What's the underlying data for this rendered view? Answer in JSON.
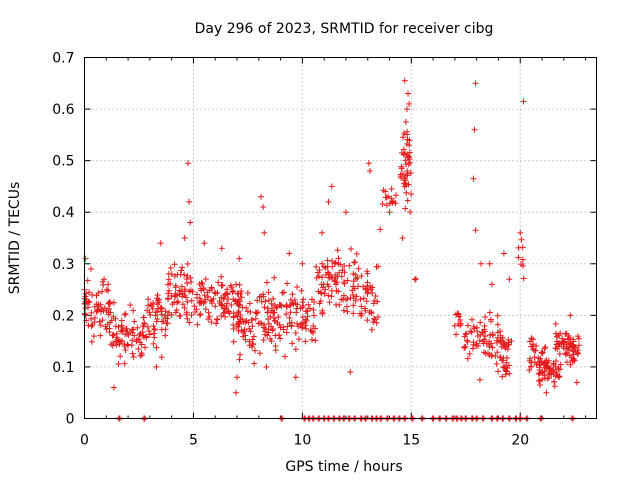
{
  "chart_data": {
    "type": "scatter",
    "title": "Day 296 of 2023, SRMTID for receiver cibg",
    "xlabel": "GPS time / hours",
    "ylabel": "SRMTID / TECUs",
    "xlim": [
      0,
      23.5
    ],
    "ylim": [
      0,
      0.7
    ],
    "xticks": [
      0,
      5,
      10,
      15,
      20
    ],
    "yticks": [
      0,
      0.1,
      0.2,
      0.3,
      0.4,
      0.5,
      0.6,
      0.7
    ],
    "xtick_labels": [
      "0",
      "5",
      "10",
      "15",
      "20"
    ],
    "ytick_labels": [
      "0",
      "0.1",
      "0.2",
      "0.3",
      "0.4",
      "0.5",
      "0.6",
      "0.7"
    ],
    "grid": true,
    "marker": "+",
    "color": "#e41a1c",
    "series": [
      {
        "name": "SRMTID",
        "segments": [
          {
            "x0": 0.0,
            "x1": 1.2,
            "level": 0.21,
            "spread": 0.05,
            "n": 70,
            "tags": [
              [
                0.05,
                0.31
              ],
              [
                0.3,
                0.29
              ],
              [
                0.9,
                0.27
              ]
            ]
          },
          {
            "x0": 1.2,
            "x1": 2.7,
            "level": 0.16,
            "spread": 0.05,
            "n": 70,
            "tags": [
              [
                1.35,
                0.06
              ],
              [
                2.1,
                0.22
              ]
            ]
          },
          {
            "x0": 2.7,
            "x1": 3.8,
            "level": 0.19,
            "spread": 0.06,
            "n": 55,
            "tags": [
              [
                3.5,
                0.34
              ],
              [
                3.3,
                0.1
              ]
            ]
          },
          {
            "x0": 3.8,
            "x1": 5.0,
            "level": 0.24,
            "spread": 0.06,
            "n": 65,
            "tags": [
              [
                4.75,
                0.495
              ],
              [
                4.8,
                0.42
              ],
              [
                4.85,
                0.38
              ],
              [
                4.6,
                0.35
              ]
            ]
          },
          {
            "x0": 5.0,
            "x1": 7.2,
            "level": 0.23,
            "spread": 0.05,
            "n": 110,
            "tags": [
              [
                5.5,
                0.34
              ],
              [
                6.3,
                0.33
              ],
              [
                7.1,
                0.31
              ]
            ]
          },
          {
            "x0": 6.8,
            "x1": 8.0,
            "level": 0.18,
            "spread": 0.06,
            "n": 55,
            "tags": [
              [
                6.95,
                0.05
              ],
              [
                7.0,
                0.08
              ]
            ]
          },
          {
            "x0": 8.0,
            "x1": 9.2,
            "level": 0.2,
            "spread": 0.07,
            "n": 65,
            "tags": [
              [
                8.1,
                0.43
              ],
              [
                8.2,
                0.41
              ],
              [
                8.25,
                0.36
              ],
              [
                8.35,
                0.1
              ]
            ]
          },
          {
            "x0": 9.2,
            "x1": 10.6,
            "level": 0.2,
            "spread": 0.06,
            "n": 65,
            "tags": [
              [
                9.4,
                0.32
              ],
              [
                10.0,
                0.3
              ],
              [
                9.7,
                0.08
              ]
            ]
          },
          {
            "x0": 10.6,
            "x1": 12.5,
            "level": 0.26,
            "spread": 0.07,
            "n": 85,
            "tags": [
              [
                11.35,
                0.45
              ],
              [
                11.2,
                0.42
              ],
              [
                12.0,
                0.4
              ],
              [
                10.9,
                0.36
              ]
            ]
          },
          {
            "x0": 12.3,
            "x1": 13.5,
            "level": 0.24,
            "spread": 0.07,
            "n": 50,
            "tags": [
              [
                13.05,
                0.495
              ],
              [
                13.1,
                0.48
              ],
              [
                12.2,
                0.09
              ]
            ]
          },
          {
            "x0": 13.5,
            "x1": 14.3,
            "level": 0.42,
            "spread": 0.05,
            "n": 15,
            "tags": [
              [
                13.8,
                0.44
              ],
              [
                14.0,
                0.4
              ]
            ]
          },
          {
            "x0": 14.5,
            "x1": 15.0,
            "level": 0.48,
            "spread": 0.08,
            "n": 45,
            "tags": [
              [
                14.7,
                0.655
              ],
              [
                14.85,
                0.63
              ],
              [
                14.9,
                0.61
              ],
              [
                14.8,
                0.6
              ],
              [
                14.75,
                0.575
              ],
              [
                14.9,
                0.53
              ],
              [
                14.6,
                0.35
              ]
            ]
          },
          {
            "x0": 15.1,
            "x1": 15.3,
            "level": 0.275,
            "spread": 0.01,
            "n": 2,
            "tags": []
          },
          {
            "x0": 16.9,
            "x1": 17.3,
            "level": 0.19,
            "spread": 0.03,
            "n": 12,
            "tags": []
          },
          {
            "x0": 17.4,
            "x1": 18.4,
            "level": 0.16,
            "spread": 0.05,
            "n": 35,
            "tags": [
              [
                17.95,
                0.65
              ],
              [
                17.9,
                0.56
              ],
              [
                17.85,
                0.465
              ],
              [
                17.95,
                0.365
              ],
              [
                18.2,
                0.3
              ],
              [
                18.15,
                0.075
              ]
            ]
          },
          {
            "x0": 18.3,
            "x1": 19.2,
            "level": 0.15,
            "spread": 0.05,
            "n": 35,
            "tags": [
              [
                18.6,
                0.3
              ],
              [
                18.7,
                0.26
              ]
            ]
          },
          {
            "x0": 18.9,
            "x1": 19.6,
            "level": 0.12,
            "spread": 0.05,
            "n": 35,
            "tags": [
              [
                19.25,
                0.32
              ],
              [
                19.5,
                0.27
              ]
            ]
          },
          {
            "x0": 19.9,
            "x1": 20.2,
            "level": 0.3,
            "spread": 0.04,
            "n": 8,
            "tags": [
              [
                20.15,
                0.615
              ],
              [
                20.0,
                0.36
              ]
            ]
          },
          {
            "x0": 20.4,
            "x1": 21.3,
            "level": 0.12,
            "spread": 0.04,
            "n": 35,
            "tags": []
          },
          {
            "x0": 20.8,
            "x1": 21.9,
            "level": 0.09,
            "spread": 0.03,
            "n": 55,
            "tags": [
              [
                21.2,
                0.05
              ]
            ]
          },
          {
            "x0": 21.6,
            "x1": 22.7,
            "level": 0.14,
            "spread": 0.04,
            "n": 70,
            "tags": [
              [
                22.3,
                0.2
              ],
              [
                22.6,
                0.07
              ]
            ]
          }
        ],
        "zeros": [
          1.6,
          2.75,
          9.05,
          10.1,
          10.3,
          10.5,
          10.75,
          11.0,
          11.2,
          11.45,
          11.7,
          11.9,
          12.15,
          12.4,
          12.7,
          12.9,
          13.2,
          13.4,
          13.6,
          13.9,
          14.2,
          14.45,
          14.7,
          15.05,
          15.5,
          16.0,
          16.3,
          16.6,
          16.9,
          17.1,
          17.3,
          17.5,
          17.8,
          18.0,
          18.3,
          18.7,
          18.95,
          19.2,
          19.5,
          19.8,
          20.0,
          20.3,
          20.95,
          22.4
        ]
      }
    ]
  }
}
